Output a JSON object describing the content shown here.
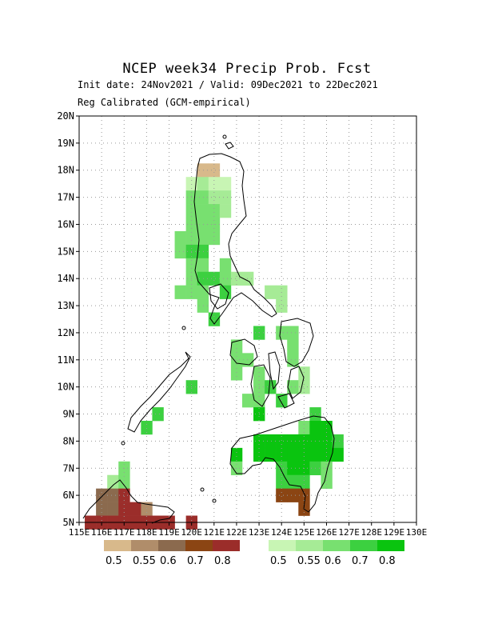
{
  "title": "NCEP  week34  Precip  Prob.  Fcst",
  "subtitle_line1": "Init date: 24Nov2021 / Valid: 09Dec2021 to 22Dec2021",
  "subtitle_line2": "Reg Calibrated (GCM-empirical)",
  "map_extent": {
    "lon": [
      115,
      130
    ],
    "lat": [
      5,
      20
    ]
  },
  "y_tick_labels": [
    "5N",
    "6N",
    "7N",
    "8N",
    "9N",
    "10N",
    "11N",
    "12N",
    "13N",
    "14N",
    "15N",
    "16N",
    "17N",
    "18N",
    "19N",
    "20N"
  ],
  "x_tick_labels": [
    "115E",
    "116E",
    "117E",
    "118E",
    "119E",
    "120E",
    "121E",
    "122E",
    "123E",
    "124E",
    "125E",
    "126E",
    "127E",
    "128E",
    "129E",
    "130E"
  ],
  "dry_legend": {
    "colors": [
      "#d8b98b",
      "#b08d6a",
      "#8b6a4e",
      "#8b4513",
      "#9b2d2a"
    ],
    "labels": [
      "0.5",
      "0.55",
      "0.6",
      "0.7",
      "0.8"
    ]
  },
  "wet_legend": {
    "colors": [
      "#c8f5b4",
      "#a6eb96",
      "#78e070",
      "#3cd040",
      "#0ac40f"
    ],
    "labels": [
      "0.5",
      "0.55",
      "0.6",
      "0.7",
      "0.8"
    ]
  },
  "cells": [
    {
      "lat": 18,
      "lon": 120.5,
      "c": "d1"
    },
    {
      "lat": 18,
      "lon": 121,
      "c": "d1"
    },
    {
      "lat": 17.5,
      "lon": 120,
      "c": "w1"
    },
    {
      "lat": 17.5,
      "lon": 120.5,
      "c": "w2"
    },
    {
      "lat": 17.5,
      "lon": 121,
      "c": "w1"
    },
    {
      "lat": 17.5,
      "lon": 121.5,
      "c": "w1"
    },
    {
      "lat": 17,
      "lon": 120,
      "c": "w3"
    },
    {
      "lat": 17,
      "lon": 120.5,
      "c": "w3"
    },
    {
      "lat": 17,
      "lon": 121,
      "c": "w2"
    },
    {
      "lat": 17,
      "lon": 121.5,
      "c": "w2"
    },
    {
      "lat": 16.5,
      "lon": 120,
      "c": "w3"
    },
    {
      "lat": 16.5,
      "lon": 120.5,
      "c": "w3"
    },
    {
      "lat": 16.5,
      "lon": 121,
      "c": "w3"
    },
    {
      "lat": 16.5,
      "lon": 121.5,
      "c": "w2"
    },
    {
      "lat": 16,
      "lon": 120,
      "c": "w3"
    },
    {
      "lat": 16,
      "lon": 120.5,
      "c": "w3"
    },
    {
      "lat": 16,
      "lon": 121,
      "c": "w3"
    },
    {
      "lat": 15.5,
      "lon": 119.5,
      "c": "w3"
    },
    {
      "lat": 15.5,
      "lon": 120,
      "c": "w3"
    },
    {
      "lat": 15.5,
      "lon": 120.5,
      "c": "w3"
    },
    {
      "lat": 15.5,
      "lon": 121,
      "c": "w3"
    },
    {
      "lat": 15,
      "lon": 119.5,
      "c": "w3"
    },
    {
      "lat": 15,
      "lon": 120,
      "c": "w4"
    },
    {
      "lat": 15,
      "lon": 120.5,
      "c": "w4"
    },
    {
      "lat": 14.5,
      "lon": 120,
      "c": "w3"
    },
    {
      "lat": 14.5,
      "lon": 120.5,
      "c": "w3"
    },
    {
      "lat": 14.5,
      "lon": 121.5,
      "c": "w3"
    },
    {
      "lat": 14,
      "lon": 120,
      "c": "w3"
    },
    {
      "lat": 14,
      "lon": 120.5,
      "c": "w4"
    },
    {
      "lat": 14,
      "lon": 121,
      "c": "w4"
    },
    {
      "lat": 14,
      "lon": 121.5,
      "c": "w3"
    },
    {
      "lat": 14,
      "lon": 122,
      "c": "w2"
    },
    {
      "lat": 14,
      "lon": 122.5,
      "c": "w2"
    },
    {
      "lat": 13.5,
      "lon": 119.5,
      "c": "w3"
    },
    {
      "lat": 13.5,
      "lon": 120,
      "c": "w3"
    },
    {
      "lat": 13.5,
      "lon": 120.5,
      "c": "w3"
    },
    {
      "lat": 13.5,
      "lon": 121.5,
      "c": "w4"
    },
    {
      "lat": 13.5,
      "lon": 123.5,
      "c": "w2"
    },
    {
      "lat": 13.5,
      "lon": 124,
      "c": "w2"
    },
    {
      "lat": 13,
      "lon": 120.5,
      "c": "w3"
    },
    {
      "lat": 13,
      "lon": 124,
      "c": "w2"
    },
    {
      "lat": 12.5,
      "lon": 121,
      "c": "w4"
    },
    {
      "lat": 12,
      "lon": 123,
      "c": "w4"
    },
    {
      "lat": 12,
      "lon": 124,
      "c": "w3"
    },
    {
      "lat": 12,
      "lon": 124.5,
      "c": "w3"
    },
    {
      "lat": 11.5,
      "lon": 122,
      "c": "w3"
    },
    {
      "lat": 11.5,
      "lon": 124.5,
      "c": "w3"
    },
    {
      "lat": 11,
      "lon": 122,
      "c": "w3"
    },
    {
      "lat": 11,
      "lon": 122.5,
      "c": "w3"
    },
    {
      "lat": 11,
      "lon": 124.5,
      "c": "w3"
    },
    {
      "lat": 10.5,
      "lon": 122,
      "c": "w3"
    },
    {
      "lat": 10.5,
      "lon": 123,
      "c": "w3"
    },
    {
      "lat": 10.5,
      "lon": 125,
      "c": "w2"
    },
    {
      "lat": 10,
      "lon": 120,
      "c": "w4"
    },
    {
      "lat": 10,
      "lon": 123,
      "c": "w3"
    },
    {
      "lat": 10,
      "lon": 123.5,
      "c": "w4"
    },
    {
      "lat": 10,
      "lon": 124.5,
      "c": "w3"
    },
    {
      "lat": 10,
      "lon": 125,
      "c": "w2"
    },
    {
      "lat": 9.5,
      "lon": 122.5,
      "c": "w3"
    },
    {
      "lat": 9.5,
      "lon": 123,
      "c": "w3"
    },
    {
      "lat": 9.5,
      "lon": 124,
      "c": "w4"
    },
    {
      "lat": 9,
      "lon": 118.5,
      "c": "w4"
    },
    {
      "lat": 9,
      "lon": 123,
      "c": "w5"
    },
    {
      "lat": 9,
      "lon": 125.5,
      "c": "w4"
    },
    {
      "lat": 8.5,
      "lon": 118,
      "c": "w4"
    },
    {
      "lat": 8.5,
      "lon": 125,
      "c": "w3"
    },
    {
      "lat": 8.5,
      "lon": 125.5,
      "c": "w5"
    },
    {
      "lat": 8.5,
      "lon": 126,
      "c": "w5"
    },
    {
      "lat": 8,
      "lon": 123,
      "c": "w5"
    },
    {
      "lat": 8,
      "lon": 123.5,
      "c": "w5"
    },
    {
      "lat": 8,
      "lon": 124,
      "c": "w5"
    },
    {
      "lat": 8,
      "lon": 124.5,
      "c": "w5"
    },
    {
      "lat": 8,
      "lon": 125,
      "c": "w5"
    },
    {
      "lat": 8,
      "lon": 125.5,
      "c": "w5"
    },
    {
      "lat": 8,
      "lon": 126,
      "c": "w5"
    },
    {
      "lat": 8,
      "lon": 126.5,
      "c": "w4"
    },
    {
      "lat": 7.5,
      "lon": 122,
      "c": "w5"
    },
    {
      "lat": 7.5,
      "lon": 123,
      "c": "w5"
    },
    {
      "lat": 7.5,
      "lon": 123.5,
      "c": "w5"
    },
    {
      "lat": 7.5,
      "lon": 124,
      "c": "w5"
    },
    {
      "lat": 7.5,
      "lon": 124.5,
      "c": "w5"
    },
    {
      "lat": 7.5,
      "lon": 125,
      "c": "w5"
    },
    {
      "lat": 7.5,
      "lon": 125.5,
      "c": "w5"
    },
    {
      "lat": 7.5,
      "lon": 126,
      "c": "w5"
    },
    {
      "lat": 7.5,
      "lon": 126.5,
      "c": "w5"
    },
    {
      "lat": 7,
      "lon": 122,
      "c": "w3"
    },
    {
      "lat": 7,
      "lon": 124,
      "c": "w4"
    },
    {
      "lat": 7,
      "lon": 124.5,
      "c": "w5"
    },
    {
      "lat": 7,
      "lon": 125,
      "c": "w5"
    },
    {
      "lat": 7,
      "lon": 125.5,
      "c": "w4"
    },
    {
      "lat": 7,
      "lon": 126,
      "c": "w3"
    },
    {
      "lat": 6.5,
      "lon": 124,
      "c": "w4"
    },
    {
      "lat": 6.5,
      "lon": 124.5,
      "c": "w4"
    },
    {
      "lat": 6.5,
      "lon": 125,
      "c": "w4"
    },
    {
      "lat": 6.5,
      "lon": 126,
      "c": "w3"
    },
    {
      "lat": 7,
      "lon": 117,
      "c": "w3"
    },
    {
      "lat": 6.5,
      "lon": 116.5,
      "c": "w2"
    },
    {
      "lat": 6.5,
      "lon": 117,
      "c": "w3"
    },
    {
      "lat": 6,
      "lon": 116,
      "c": "d3"
    },
    {
      "lat": 6,
      "lon": 116.5,
      "c": "d3"
    },
    {
      "lat": 6,
      "lon": 117,
      "c": "d5"
    },
    {
      "lat": 6,
      "lon": 124,
      "c": "d4"
    },
    {
      "lat": 6,
      "lon": 124.5,
      "c": "d4"
    },
    {
      "lat": 6,
      "lon": 125,
      "c": "d4"
    },
    {
      "lat": 5.5,
      "lon": 116,
      "c": "d3"
    },
    {
      "lat": 5.5,
      "lon": 116.5,
      "c": "d3"
    },
    {
      "lat": 5.5,
      "lon": 117,
      "c": "d5"
    },
    {
      "lat": 5.5,
      "lon": 117.5,
      "c": "d5"
    },
    {
      "lat": 5.5,
      "lon": 118,
      "c": "d2"
    },
    {
      "lat": 5.5,
      "lon": 125,
      "c": "d4"
    },
    {
      "lat": 5,
      "lon": 115.5,
      "c": "d5"
    },
    {
      "lat": 5,
      "lon": 116,
      "c": "d5"
    },
    {
      "lat": 5,
      "lon": 116.5,
      "c": "d5"
    },
    {
      "lat": 5,
      "lon": 117,
      "c": "d5"
    },
    {
      "lat": 5,
      "lon": 117.5,
      "c": "d5"
    },
    {
      "lat": 5,
      "lon": 118,
      "c": "d5"
    },
    {
      "lat": 5,
      "lon": 118.5,
      "c": "d5"
    },
    {
      "lat": 5,
      "lon": 119,
      "c": "d5"
    },
    {
      "lat": 5,
      "lon": 120,
      "c": "d5"
    }
  ]
}
